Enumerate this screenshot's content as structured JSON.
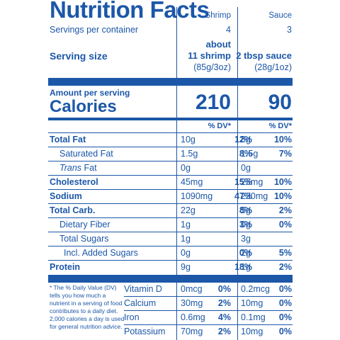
{
  "title": "Nutrition Facts",
  "columns": [
    {
      "name": "Shrimp",
      "servings": "4",
      "size_line1": "about",
      "size_line2": "11 shrimp",
      "size_line3": "(85g/3oz)",
      "calories": "210",
      "dv_header": "% DV*"
    },
    {
      "name": "Sauce",
      "servings": "3",
      "size_line1": "",
      "size_line2": "2 tbsp sauce",
      "size_line3": "(28g/1oz)",
      "calories": "90",
      "dv_header": "% DV*"
    }
  ],
  "servings_label": "Servings per container",
  "serving_size_label": "Serving size",
  "amount_label": "Amount per serving",
  "calories_label": "Calories",
  "nutrients": [
    {
      "name": "Total Fat",
      "bold": true,
      "indent": 0,
      "a1": "10g",
      "p1": "12%",
      "a2": "8g",
      "p2": "10%"
    },
    {
      "name": "Saturated Fat",
      "bold": false,
      "indent": 1,
      "a1": "1.5g",
      "p1": "8%",
      "a2": "1.5g",
      "p2": "7%"
    },
    {
      "name": "Trans Fat",
      "bold": false,
      "indent": 1,
      "italic_prefix": "Trans",
      "a1": "0g",
      "p1": "",
      "a2": "0g",
      "p2": ""
    },
    {
      "name": "Cholesterol",
      "bold": true,
      "indent": 0,
      "a1": "45mg",
      "p1": "15%",
      "a2": "25mg",
      "p2": "10%"
    },
    {
      "name": "Sodium",
      "bold": true,
      "indent": 0,
      "a1": "1090mg",
      "p1": "47%",
      "a2": "230mg",
      "p2": "10%"
    },
    {
      "name": "Total Carb.",
      "bold": true,
      "indent": 0,
      "a1": "22g",
      "p1": "8%",
      "a2": "5g",
      "p2": "2%"
    },
    {
      "name": "Dietary Fiber",
      "bold": false,
      "indent": 1,
      "a1": "1g",
      "p1": "3%",
      "a2": "0g",
      "p2": "0%"
    },
    {
      "name": "Total Sugars",
      "bold": false,
      "indent": 1,
      "a1": "1g",
      "p1": "",
      "a2": "3g",
      "p2": ""
    },
    {
      "name": "Incl. Added Sugars",
      "bold": false,
      "indent": 2,
      "a1": "0g",
      "p1": "0%",
      "a2": "2g",
      "p2": "5%"
    },
    {
      "name": "Protein",
      "bold": true,
      "indent": 0,
      "a1": "9g",
      "p1": "18%",
      "a2": "1g",
      "p2": "2%"
    }
  ],
  "footnote": "* The % Daily Value (DV) tells you how much a nutrient in a serving of food contributes to a daily diet. 2,000 calories a day is used for general nutrition advice.",
  "vitamins": [
    {
      "name": "Vitamin D",
      "a1": "0mcg",
      "p1": "0%",
      "a2": "0.2mcg",
      "p2": "0%"
    },
    {
      "name": "Calcium",
      "a1": "30mg",
      "p1": "2%",
      "a2": "10mg",
      "p2": "0%"
    },
    {
      "name": "Iron",
      "a1": "0.6mg",
      "p1": "4%",
      "a2": "0.1mg",
      "p2": "0%"
    },
    {
      "name": "Potassium",
      "a1": "70mg",
      "p1": "2%",
      "a2": "10mg",
      "p2": "0%"
    }
  ],
  "colors": {
    "ink": "#1c57a8",
    "background": "#ffffff"
  }
}
